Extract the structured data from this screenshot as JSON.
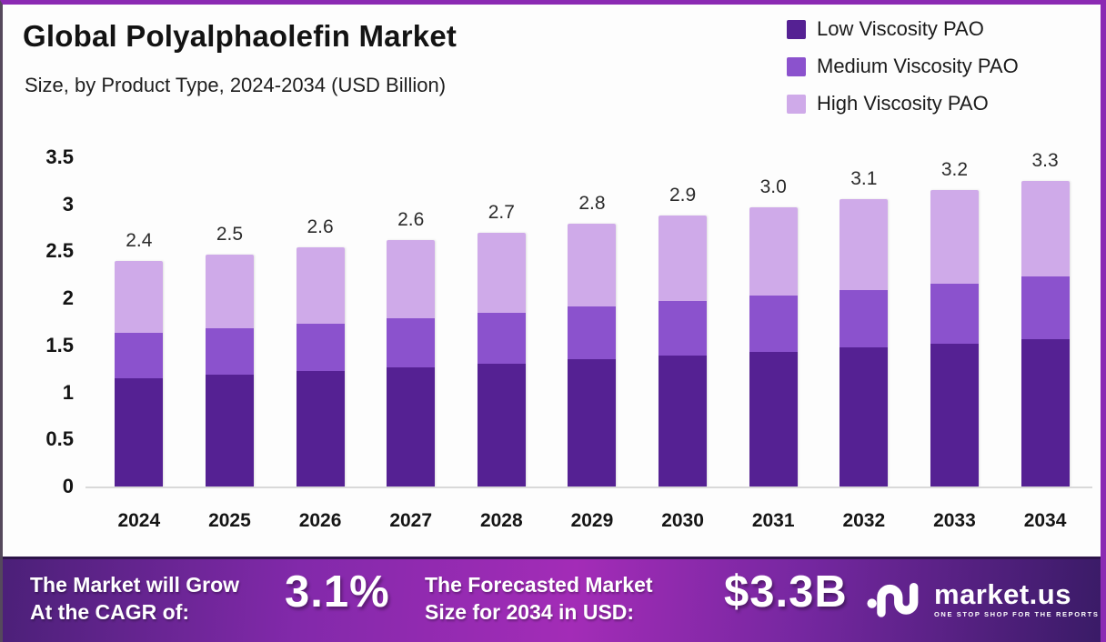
{
  "header": {
    "title": "Global Polyalphaolefin Market",
    "subtitle": "Size, by Product Type, 2024-2034 (USD Billion)"
  },
  "legend": [
    {
      "label": "Low Viscosity PAO",
      "color": "#552193"
    },
    {
      "label": "Medium Viscosity PAO",
      "color": "#8b52cd"
    },
    {
      "label": "High Viscosity PAO",
      "color": "#cfaae9"
    }
  ],
  "chart_data": {
    "type": "bar",
    "stacked": true,
    "title": "Global Polyalphaolefin Market Size, by Product Type, 2024-2034 (USD Billion)",
    "categories": [
      "2024",
      "2025",
      "2026",
      "2027",
      "2028",
      "2029",
      "2030",
      "2031",
      "2032",
      "2033",
      "2034"
    ],
    "series": [
      {
        "name": "Low Viscosity PAO",
        "color": "#552193",
        "values": [
          1.15,
          1.19,
          1.23,
          1.27,
          1.31,
          1.35,
          1.39,
          1.43,
          1.48,
          1.52,
          1.57
        ]
      },
      {
        "name": "Medium Viscosity PAO",
        "color": "#8b52cd",
        "values": [
          0.48,
          0.49,
          0.5,
          0.52,
          0.54,
          0.56,
          0.58,
          0.6,
          0.61,
          0.64,
          0.66
        ]
      },
      {
        "name": "High Viscosity PAO",
        "color": "#cfaae9",
        "values": [
          0.77,
          0.79,
          0.81,
          0.83,
          0.85,
          0.88,
          0.91,
          0.94,
          0.97,
          0.99,
          1.02
        ]
      }
    ],
    "totals": [
      "2.4",
      "2.5",
      "2.6",
      "2.6",
      "2.7",
      "2.8",
      "2.9",
      "3.0",
      "3.1",
      "3.2",
      "3.3"
    ],
    "yticks": [
      "3.5",
      "3",
      "2.5",
      "2",
      "1.5",
      "1",
      "0.5",
      "0"
    ],
    "ylim": [
      0,
      3.5
    ],
    "xlabel": "",
    "ylabel": "",
    "grid": false,
    "legend_position": "top-right"
  },
  "footer": {
    "cagr": {
      "line1": "The Market will Grow",
      "line2": "At the CAGR of:",
      "value": "3.1%"
    },
    "forecast": {
      "line1": "The Forecasted Market",
      "line2": "Size for 2034 in USD:",
      "value": "$3.3B"
    },
    "brand": {
      "name": "market.us",
      "tagline": "ONE STOP SHOP FOR THE REPORTS"
    }
  }
}
